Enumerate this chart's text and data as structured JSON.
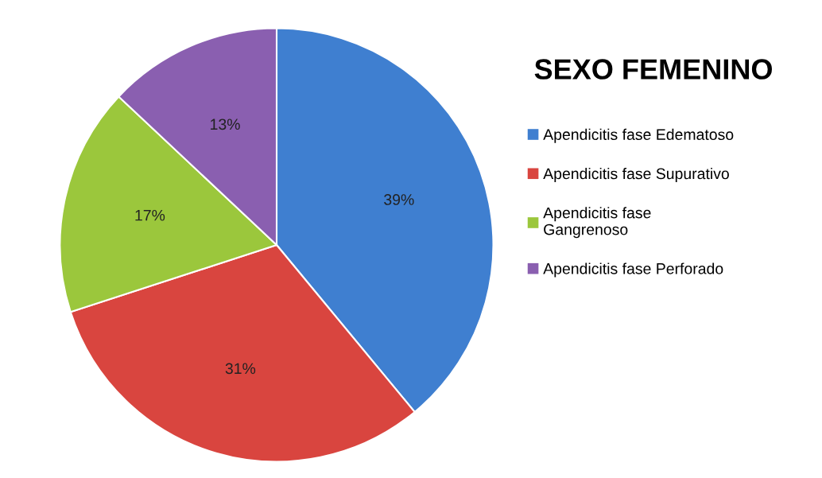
{
  "chart_data": {
    "type": "pie",
    "title": "SEXO FEMENINO",
    "categories": [
      "Apendicitis fase Edematoso",
      "Apendicitis fase Supurativo",
      "Apendicitis fase\nGangrenoso",
      "Apendicitis fase Perforado"
    ],
    "values": [
      39,
      31,
      17,
      13
    ],
    "colors": [
      "#3f7fd0",
      "#d9453f",
      "#9bc73c",
      "#8a5fb0"
    ],
    "value_labels": [
      "39%",
      "31%",
      "17%",
      "13%"
    ],
    "legend": "right"
  }
}
